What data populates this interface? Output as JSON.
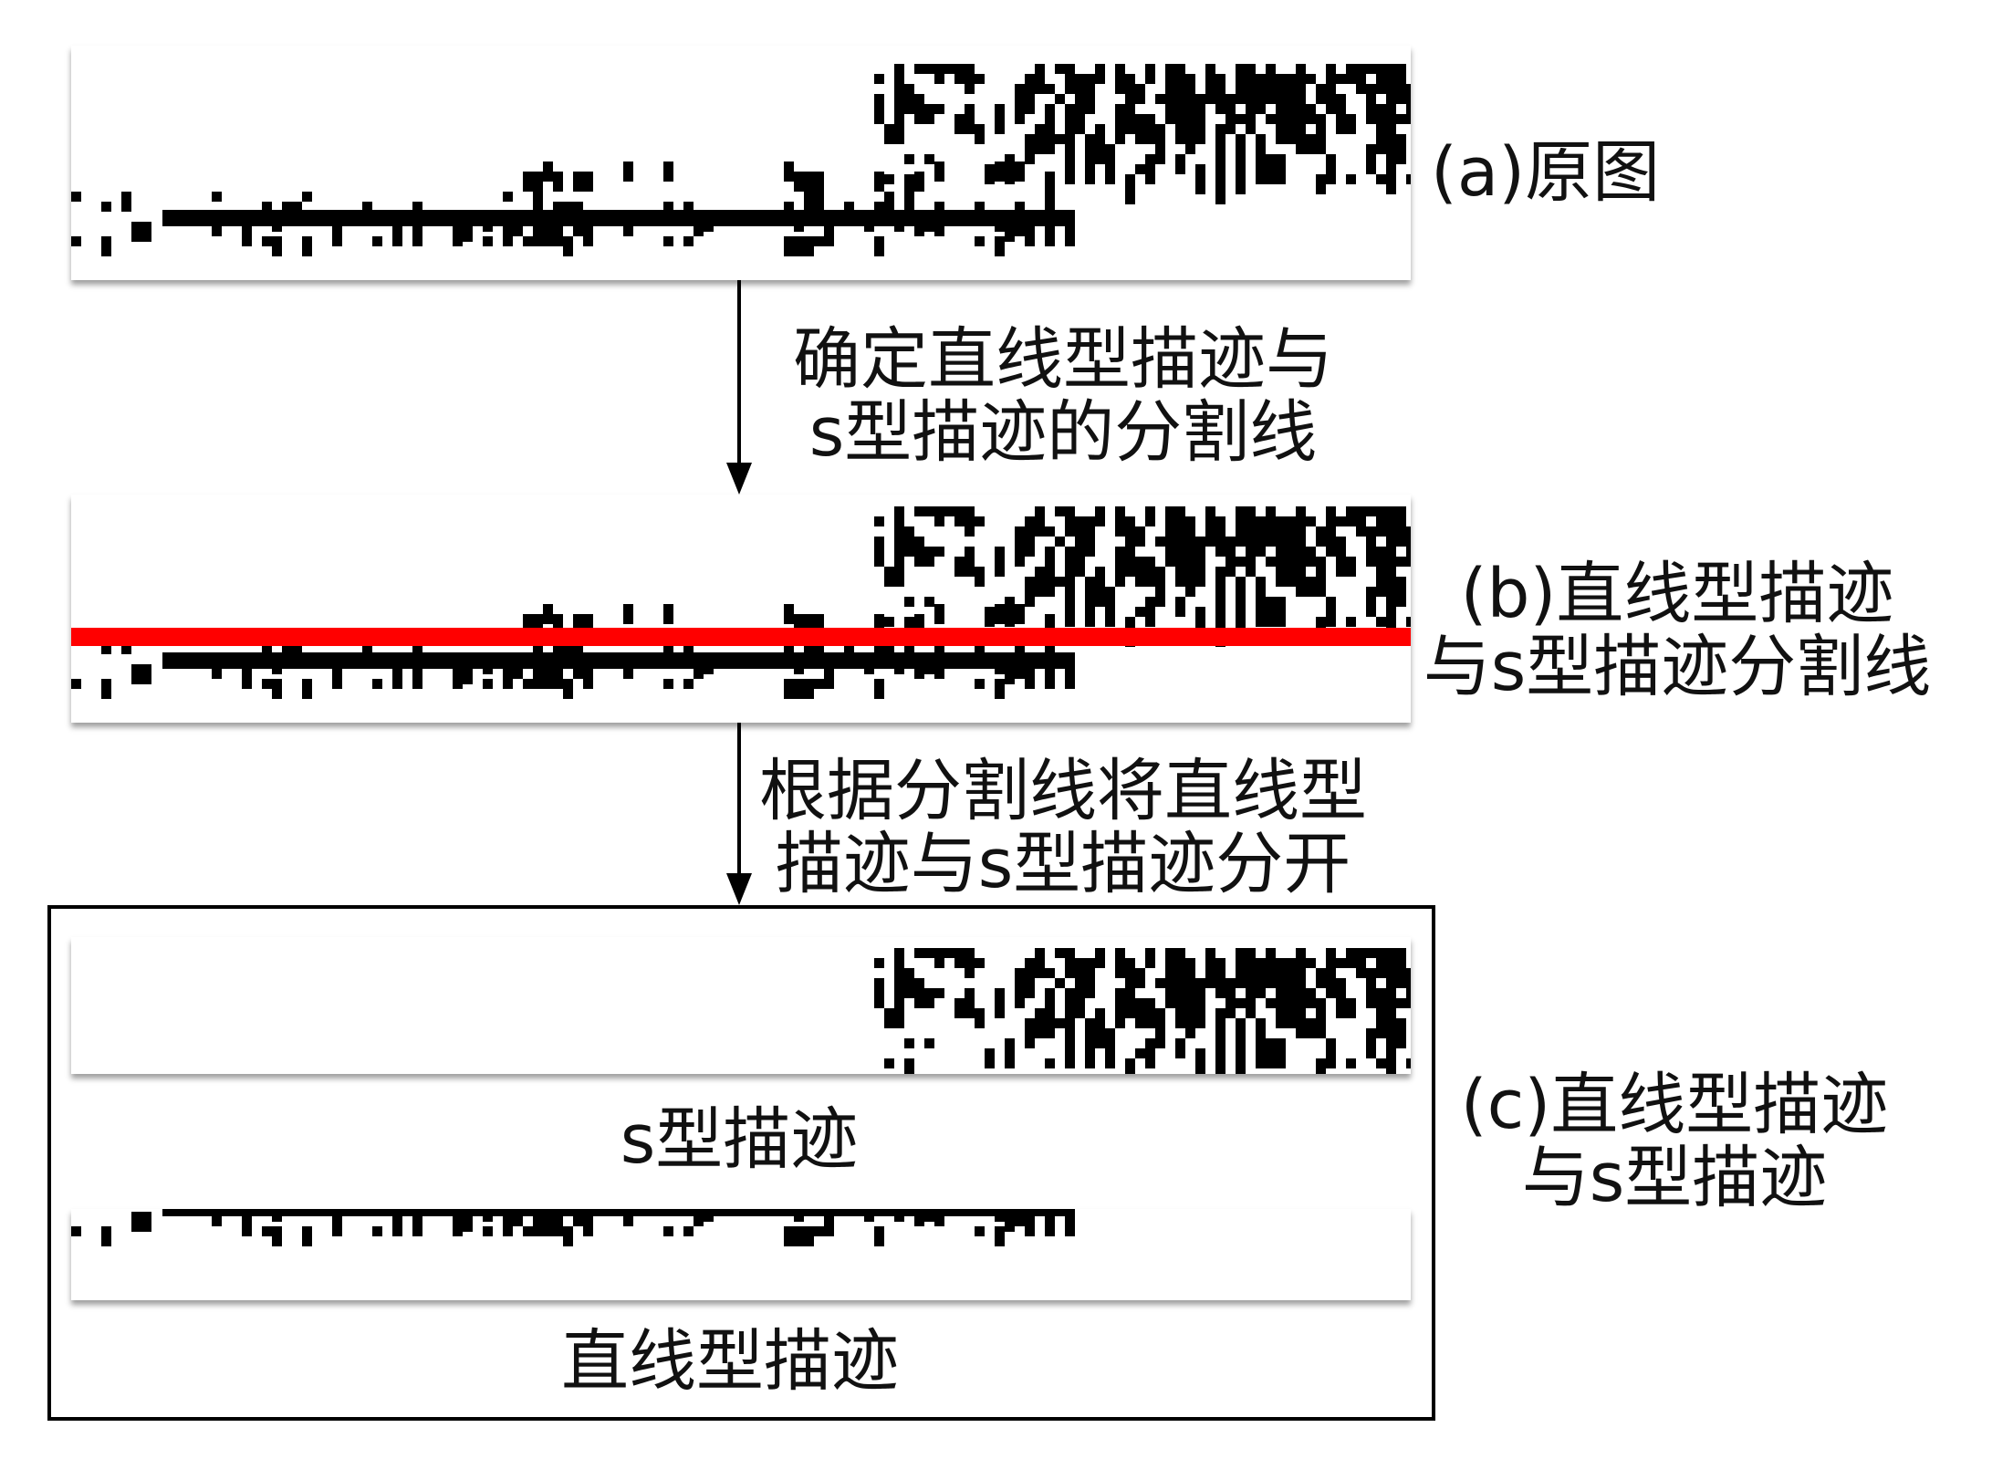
{
  "panel_a": {
    "label": "(a)原图"
  },
  "step_1": {
    "lines": [
      "确定直线型描迹与",
      "s型描迹的分割线"
    ]
  },
  "panel_b": {
    "label_lines": [
      "(b)直线型描迹",
      "与s型描迹分割线"
    ],
    "divider_color": "#ff0000"
  },
  "step_2": {
    "lines": [
      "根据分割线将直线型",
      "描迹与s型描迹分开"
    ]
  },
  "panel_c": {
    "label_lines": [
      "(c)直线型描迹",
      "与s型描迹"
    ],
    "s_caption": "s型描迹",
    "straight_caption": "直线型描迹"
  },
  "colors": {
    "trace": "#000000",
    "arrow": "#000000",
    "frame": "#000000"
  }
}
